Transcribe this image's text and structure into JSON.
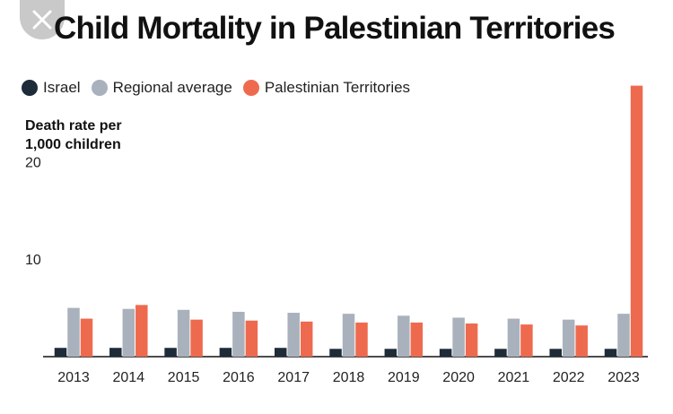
{
  "close_button": {
    "icon": "close-icon"
  },
  "chart_data": {
    "type": "bar",
    "title": "Child Mortality in Palestinian Territories",
    "ylabel": "Death rate per 1,000 children",
    "xlabel": "",
    "ylim": [
      0,
      28.5
    ],
    "yticks": [
      10,
      20
    ],
    "grid": false,
    "legend_position": "top-left",
    "categories": [
      "2013",
      "2014",
      "2015",
      "2016",
      "2017",
      "2018",
      "2019",
      "2020",
      "2021",
      "2022",
      "2023"
    ],
    "series": [
      {
        "name": "Israel",
        "color": "#1e2b38",
        "values": [
          0.9,
          0.9,
          0.9,
          0.9,
          0.9,
          0.8,
          0.8,
          0.8,
          0.8,
          0.8,
          0.8
        ]
      },
      {
        "name": "Regional average",
        "color": "#a9b2bc",
        "values": [
          5.0,
          4.9,
          4.8,
          4.6,
          4.5,
          4.4,
          4.2,
          4.0,
          3.9,
          3.8,
          4.4
        ]
      },
      {
        "name": "Palestinian Territories",
        "color": "#ee6a4f",
        "values": [
          3.9,
          5.3,
          3.8,
          3.7,
          3.6,
          3.5,
          3.5,
          3.4,
          3.3,
          3.2,
          27.8
        ]
      }
    ]
  }
}
